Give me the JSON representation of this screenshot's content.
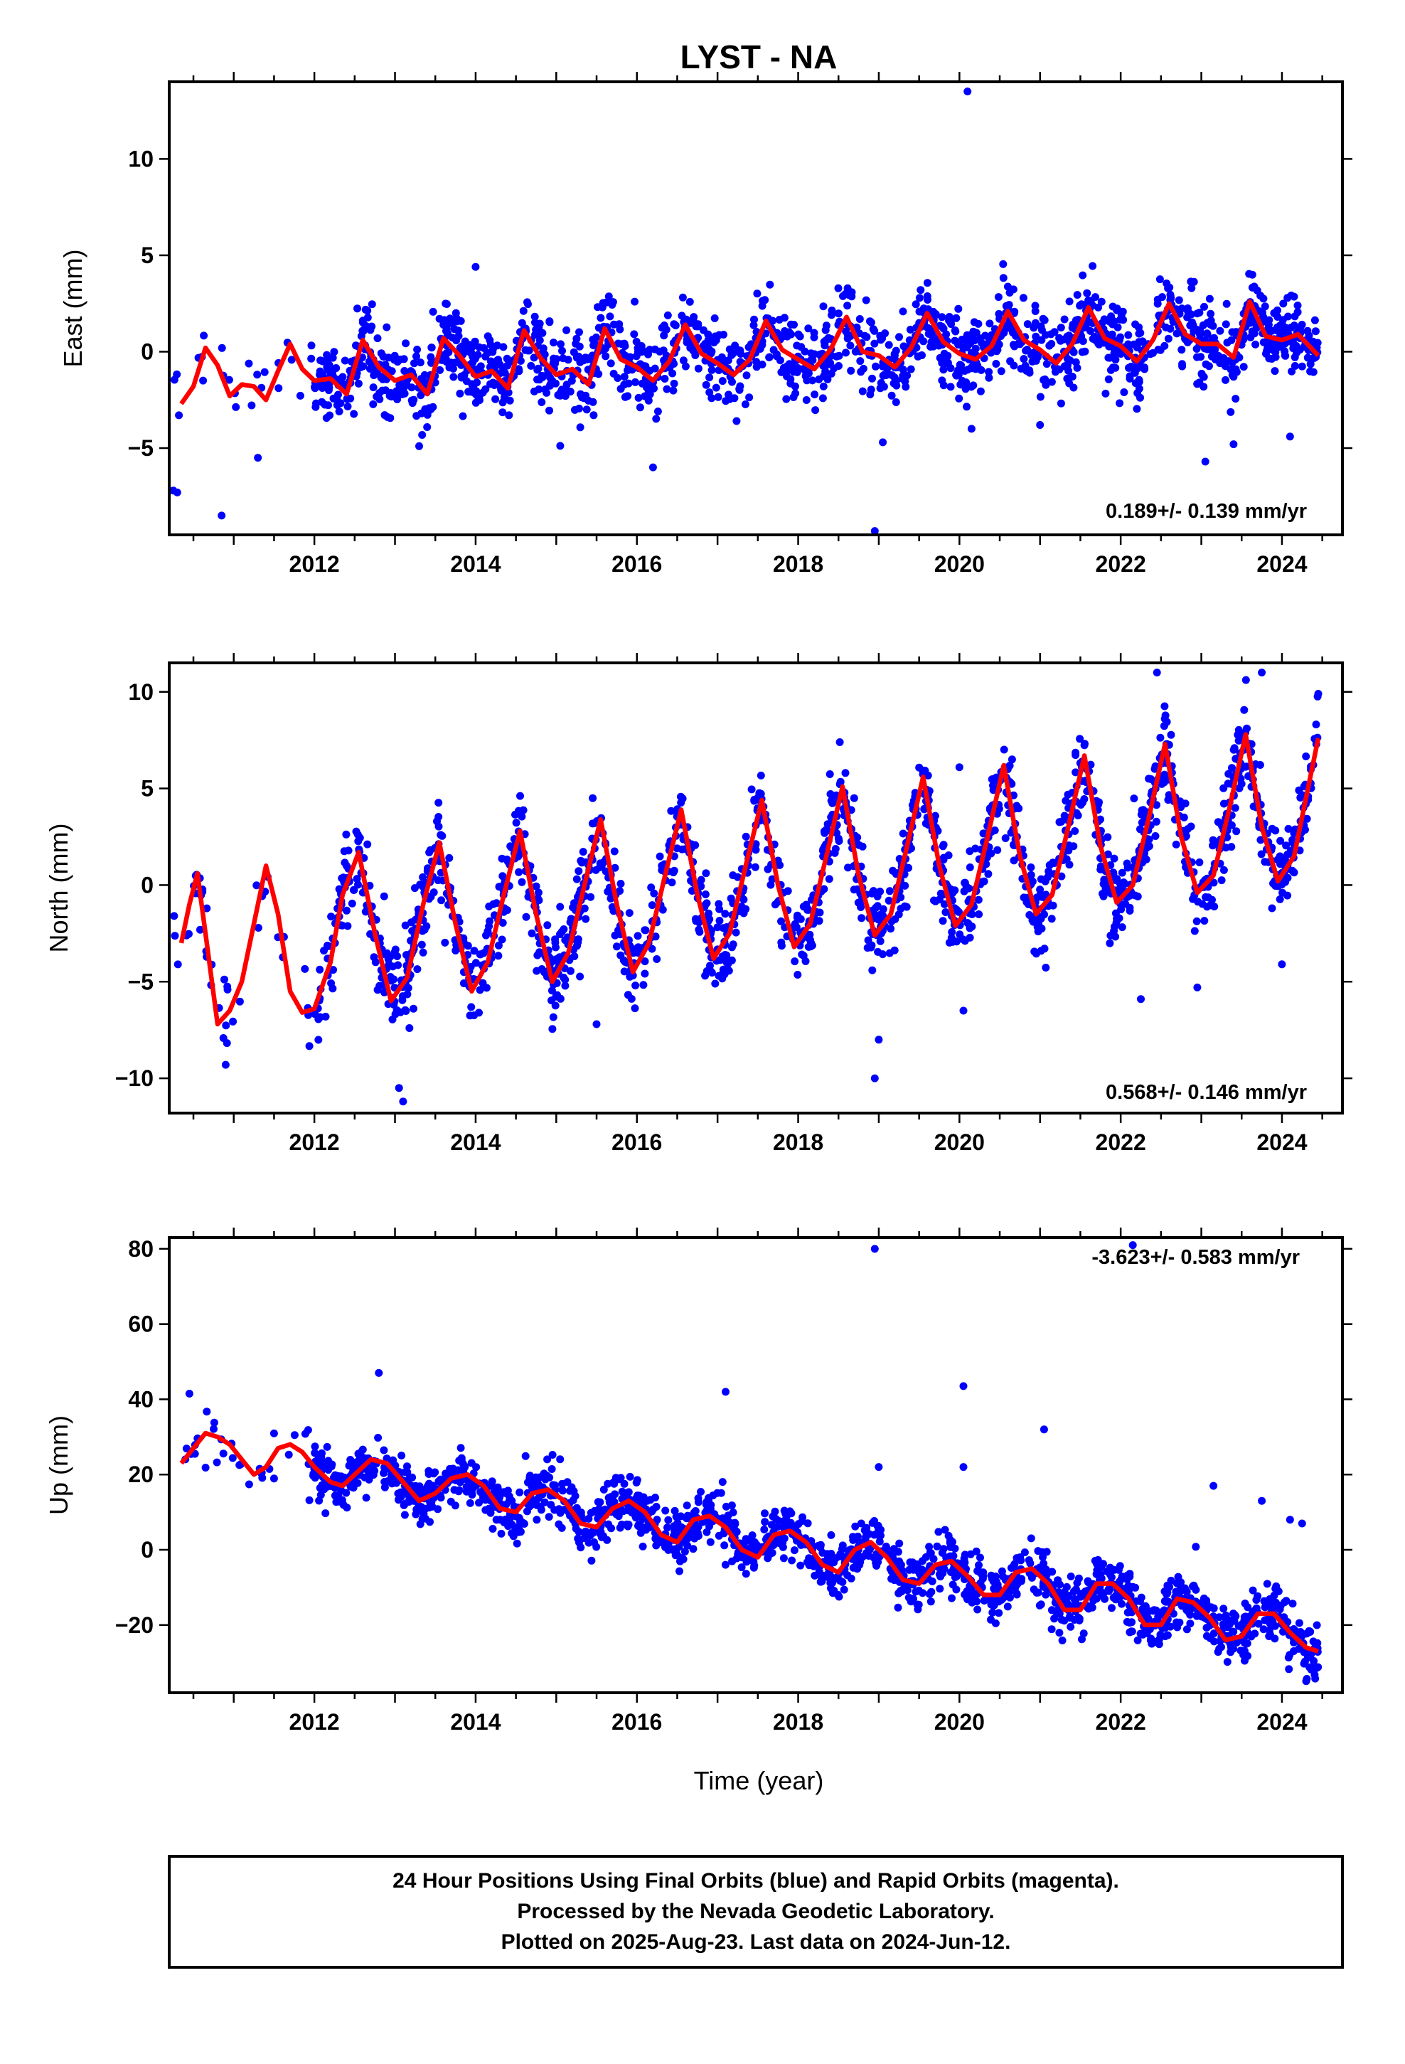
{
  "title": "LYST - NA",
  "xlabel": "Time (year)",
  "colors": {
    "data": "#0000ff",
    "model": "#ff0000",
    "frame": "#000000"
  },
  "footer": {
    "line1": "24 Hour Positions Using Final Orbits (blue) and Rapid Orbits (magenta).",
    "line2": "Processed by the Nevada Geodetic Laboratory.",
    "line3": "Plotted on 2025-Aug-23. Last data on 2024-Jun-12."
  },
  "chart_data": [
    {
      "type": "scatter",
      "component": "east",
      "ylabel": "East (mm)",
      "rate_label": "0.189+/- 0.139 mm/yr",
      "xlim": [
        2010.2,
        2024.75
      ],
      "ylim": [
        -9.5,
        14
      ],
      "xticks": [
        2012,
        2014,
        2016,
        2018,
        2020,
        2022,
        2024
      ],
      "yticks": [
        -5,
        0,
        5,
        10
      ],
      "model": {
        "name": "model fit",
        "x": [
          2010.35,
          2010.5,
          2010.65,
          2010.8,
          2010.95,
          2011.1,
          2011.25,
          2011.4,
          2011.55,
          2011.7,
          2011.85,
          2012.0,
          2012.2,
          2012.4,
          2012.6,
          2012.8,
          2013.0,
          2013.2,
          2013.4,
          2013.6,
          2013.8,
          2014.0,
          2014.2,
          2014.4,
          2014.6,
          2014.8,
          2015.0,
          2015.2,
          2015.4,
          2015.6,
          2015.8,
          2016.0,
          2016.2,
          2016.4,
          2016.6,
          2016.8,
          2017.0,
          2017.2,
          2017.4,
          2017.6,
          2017.8,
          2018.0,
          2018.2,
          2018.4,
          2018.6,
          2018.8,
          2019.0,
          2019.2,
          2019.4,
          2019.6,
          2019.8,
          2020.0,
          2020.2,
          2020.4,
          2020.6,
          2020.8,
          2021.0,
          2021.2,
          2021.4,
          2021.6,
          2021.8,
          2022.0,
          2022.2,
          2022.4,
          2022.6,
          2022.8,
          2023.0,
          2023.2,
          2023.4,
          2023.6,
          2023.8,
          2024.0,
          2024.2,
          2024.45
        ],
        "y": [
          -2.7,
          -1.8,
          0.2,
          -0.7,
          -2.3,
          -1.7,
          -1.8,
          -2.5,
          -1.0,
          0.4,
          -0.9,
          -1.5,
          -1.4,
          -2.2,
          0.6,
          -0.8,
          -1.5,
          -1.2,
          -2.2,
          0.7,
          -0.2,
          -1.3,
          -1.0,
          -1.9,
          1.1,
          -0.3,
          -1.2,
          -0.9,
          -1.7,
          1.2,
          -0.4,
          -0.8,
          -1.5,
          -0.5,
          1.4,
          -0.1,
          -0.6,
          -1.2,
          -0.4,
          1.6,
          0.1,
          -0.4,
          -0.9,
          0.1,
          1.8,
          0.0,
          -0.2,
          -0.8,
          0.2,
          2.0,
          0.5,
          -0.1,
          -0.4,
          0.3,
          2.1,
          0.6,
          0.1,
          -0.6,
          0.4,
          2.3,
          0.7,
          0.3,
          -0.5,
          0.6,
          2.5,
          0.9,
          0.4,
          0.4,
          -0.3,
          2.6,
          0.8,
          0.6,
          0.9,
          -0.2
        ]
      },
      "outliers": [
        [
          2010.25,
          -7.2
        ],
        [
          2010.3,
          -7.3
        ],
        [
          2010.32,
          -3.3
        ],
        [
          2010.85,
          -8.5
        ],
        [
          2010.62,
          -1.5
        ],
        [
          2011.3,
          -5.5
        ],
        [
          2013.3,
          -4.9
        ],
        [
          2014.0,
          4.4
        ],
        [
          2016.2,
          -6.0
        ],
        [
          2018.95,
          -9.3
        ],
        [
          2019.05,
          -4.7
        ],
        [
          2020.1,
          13.5
        ],
        [
          2020.15,
          -4.0
        ],
        [
          2021.0,
          -3.8
        ],
        [
          2023.05,
          -5.7
        ],
        [
          2023.4,
          -4.8
        ],
        [
          2024.1,
          -4.4
        ]
      ]
    },
    {
      "type": "scatter",
      "component": "north",
      "ylabel": "North (mm)",
      "rate_label": "0.568+/- 0.146 mm/yr",
      "xlim": [
        2010.2,
        2024.75
      ],
      "ylim": [
        -11.8,
        11.5
      ],
      "xticks": [
        2012,
        2014,
        2016,
        2018,
        2020,
        2022,
        2024
      ],
      "yticks": [
        -10,
        -5,
        0,
        5,
        10
      ],
      "model": {
        "name": "model fit",
        "x": [
          2010.35,
          2010.45,
          2010.55,
          2010.65,
          2010.8,
          2010.95,
          2011.1,
          2011.25,
          2011.4,
          2011.55,
          2011.7,
          2011.85,
          2012.0,
          2012.2,
          2012.35,
          2012.55,
          2012.75,
          2012.95,
          2013.15,
          2013.35,
          2013.55,
          2013.75,
          2013.95,
          2014.15,
          2014.35,
          2014.55,
          2014.75,
          2014.95,
          2015.15,
          2015.35,
          2015.55,
          2015.75,
          2015.95,
          2016.15,
          2016.35,
          2016.55,
          2016.75,
          2016.95,
          2017.15,
          2017.35,
          2017.55,
          2017.75,
          2017.95,
          2018.15,
          2018.35,
          2018.55,
          2018.75,
          2018.95,
          2019.15,
          2019.35,
          2019.55,
          2019.75,
          2019.95,
          2020.15,
          2020.35,
          2020.55,
          2020.75,
          2020.95,
          2021.15,
          2021.35,
          2021.55,
          2021.75,
          2021.95,
          2022.15,
          2022.35,
          2022.55,
          2022.75,
          2022.95,
          2023.15,
          2023.35,
          2023.55,
          2023.75,
          2023.95,
          2024.15,
          2024.45
        ],
        "y": [
          -3.0,
          -1.0,
          0.6,
          -2.5,
          -7.2,
          -6.5,
          -5.0,
          -2.0,
          1.0,
          -1.5,
          -5.5,
          -6.6,
          -6.4,
          -4.0,
          -0.5,
          1.7,
          -2.5,
          -6.0,
          -4.8,
          -1.0,
          2.2,
          -2.0,
          -5.5,
          -4.0,
          -0.5,
          2.8,
          -1.5,
          -5.0,
          -3.5,
          0.0,
          3.4,
          -1.0,
          -4.5,
          -3.0,
          0.5,
          3.9,
          -0.5,
          -3.8,
          -2.5,
          1.0,
          4.4,
          0.0,
          -3.2,
          -2.0,
          1.5,
          5.1,
          0.5,
          -2.6,
          -1.5,
          2.0,
          5.6,
          1.0,
          -2.1,
          -1.0,
          2.5,
          6.2,
          1.5,
          -1.5,
          -0.5,
          3.0,
          6.7,
          2.0,
          -0.9,
          0.0,
          3.5,
          7.3,
          2.5,
          -0.4,
          0.5,
          4.0,
          7.8,
          3.0,
          0.2,
          1.5,
          7.6
        ]
      },
      "outliers": [
        [
          2010.9,
          -9.3
        ],
        [
          2013.1,
          -11.2
        ],
        [
          2013.05,
          -10.5
        ],
        [
          2015.5,
          -7.2
        ],
        [
          2018.95,
          -10.0
        ],
        [
          2019.0,
          -8.0
        ],
        [
          2020.0,
          6.1
        ],
        [
          2020.05,
          -6.5
        ],
        [
          2022.25,
          -5.9
        ],
        [
          2022.45,
          11.0
        ],
        [
          2022.95,
          -5.3
        ],
        [
          2023.75,
          11.0
        ],
        [
          2024.0,
          -4.1
        ],
        [
          2024.45,
          9.9
        ]
      ]
    },
    {
      "type": "scatter",
      "component": "up",
      "ylabel": "Up (mm)",
      "rate_label": "-3.623+/- 0.583 mm/yr",
      "xlim": [
        2010.2,
        2024.75
      ],
      "ylim": [
        -38,
        83
      ],
      "xticks": [
        2012,
        2014,
        2016,
        2018,
        2020,
        2022,
        2024
      ],
      "yticks": [
        -20,
        0,
        20,
        40,
        60,
        80
      ],
      "model": {
        "name": "model fit",
        "x": [
          2010.35,
          2010.5,
          2010.65,
          2010.8,
          2010.95,
          2011.1,
          2011.25,
          2011.4,
          2011.55,
          2011.7,
          2011.85,
          2012.0,
          2012.2,
          2012.35,
          2012.5,
          2012.7,
          2012.9,
          2013.1,
          2013.3,
          2013.5,
          2013.7,
          2013.9,
          2014.1,
          2014.3,
          2014.5,
          2014.7,
          2014.9,
          2015.1,
          2015.3,
          2015.5,
          2015.7,
          2015.9,
          2016.1,
          2016.3,
          2016.5,
          2016.7,
          2016.9,
          2017.1,
          2017.3,
          2017.5,
          2017.7,
          2017.9,
          2018.1,
          2018.3,
          2018.5,
          2018.7,
          2018.9,
          2019.1,
          2019.3,
          2019.5,
          2019.7,
          2019.9,
          2020.1,
          2020.3,
          2020.5,
          2020.7,
          2020.9,
          2021.1,
          2021.3,
          2021.5,
          2021.7,
          2021.9,
          2022.1,
          2022.3,
          2022.5,
          2022.7,
          2022.9,
          2023.1,
          2023.3,
          2023.5,
          2023.7,
          2023.9,
          2024.1,
          2024.3,
          2024.45
        ],
        "y": [
          23,
          27,
          31,
          30,
          28,
          24,
          20,
          22,
          27,
          28,
          26,
          22,
          18,
          17,
          20,
          24,
          23,
          18,
          13,
          15,
          19,
          20,
          17,
          11,
          10,
          15,
          16,
          13,
          7,
          6,
          11,
          13,
          10,
          4,
          2,
          8,
          9,
          6,
          0,
          -2,
          4,
          5,
          2,
          -4,
          -6,
          0,
          2,
          -2,
          -8,
          -9,
          -4,
          -3,
          -7,
          -12,
          -12,
          -6,
          -5,
          -9,
          -16,
          -16,
          -9,
          -9,
          -13,
          -20,
          -20,
          -13,
          -14,
          -18,
          -24,
          -23,
          -17,
          -17,
          -22,
          -26,
          -27
        ]
      },
      "outliers": [
        [
          2010.45,
          41.5
        ],
        [
          2012.8,
          47
        ],
        [
          2017.1,
          42
        ],
        [
          2018.95,
          80
        ],
        [
          2019.0,
          22
        ],
        [
          2020.05,
          43.5
        ],
        [
          2020.05,
          22
        ],
        [
          2021.05,
          32
        ],
        [
          2022.15,
          81
        ],
        [
          2023.15,
          17
        ],
        [
          2023.75,
          13
        ],
        [
          2024.1,
          8
        ],
        [
          2024.25,
          7
        ]
      ]
    }
  ]
}
